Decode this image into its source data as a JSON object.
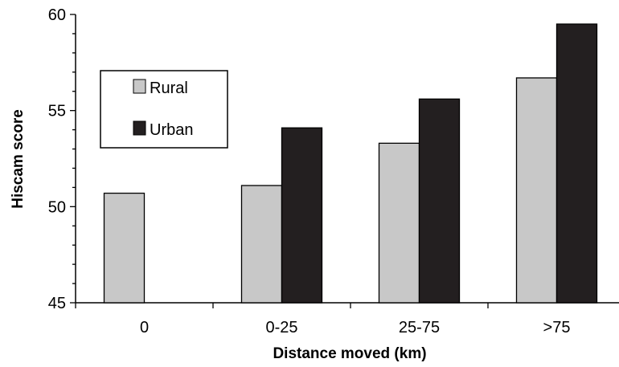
{
  "chart_data": {
    "type": "bar",
    "categories": [
      "0",
      "0-25",
      "25-75",
      ">75"
    ],
    "series": [
      {
        "name": "Rural",
        "values": [
          50.7,
          51.1,
          53.3,
          56.7
        ],
        "color": "#c8c8c8"
      },
      {
        "name": "Urban",
        "values": [
          null,
          54.1,
          55.6,
          59.5
        ],
        "color": "#231f20"
      }
    ],
    "xlabel": "Distance moved (km)",
    "ylabel": "Hiscam score",
    "ylim": [
      45,
      60
    ],
    "yticks": [
      45,
      50,
      55,
      60
    ],
    "grid": false,
    "legend_position": "top-left"
  }
}
